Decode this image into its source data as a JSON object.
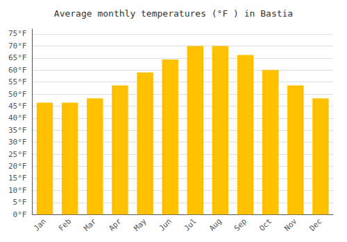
{
  "chart_data": {
    "type": "bar",
    "title": "Average monthly temperatures (°F ) in Bastia",
    "categories": [
      "Jan",
      "Feb",
      "Mar",
      "Apr",
      "May",
      "Jun",
      "Jul",
      "Aug",
      "Sep",
      "Oct",
      "Nov",
      "Dec"
    ],
    "values": [
      46.4,
      46.4,
      48.2,
      53.6,
      59.0,
      64.4,
      70.0,
      70.0,
      66.2,
      60.0,
      53.6,
      48.2
    ],
    "color": "#FFC000",
    "ylim": [
      0,
      77
    ],
    "yticks": [
      {
        "value": 0,
        "label": "0°F"
      },
      {
        "value": 5,
        "label": "5°F"
      },
      {
        "value": 10,
        "label": "10°F"
      },
      {
        "value": 15,
        "label": "15°F"
      },
      {
        "value": 20,
        "label": "20°F"
      },
      {
        "value": 25,
        "label": "25°F"
      },
      {
        "value": 30,
        "label": "30°F"
      },
      {
        "value": 35,
        "label": "35°F"
      },
      {
        "value": 40,
        "label": "40°F"
      },
      {
        "value": 45,
        "label": "45°F"
      },
      {
        "value": 50,
        "label": "50°F"
      },
      {
        "value": 55,
        "label": "55°F"
      },
      {
        "value": 60,
        "label": "60°F"
      },
      {
        "value": 65,
        "label": "65°F"
      },
      {
        "value": 70,
        "label": "70°F"
      },
      {
        "value": 75,
        "label": "75°F"
      }
    ],
    "grid": true
  }
}
